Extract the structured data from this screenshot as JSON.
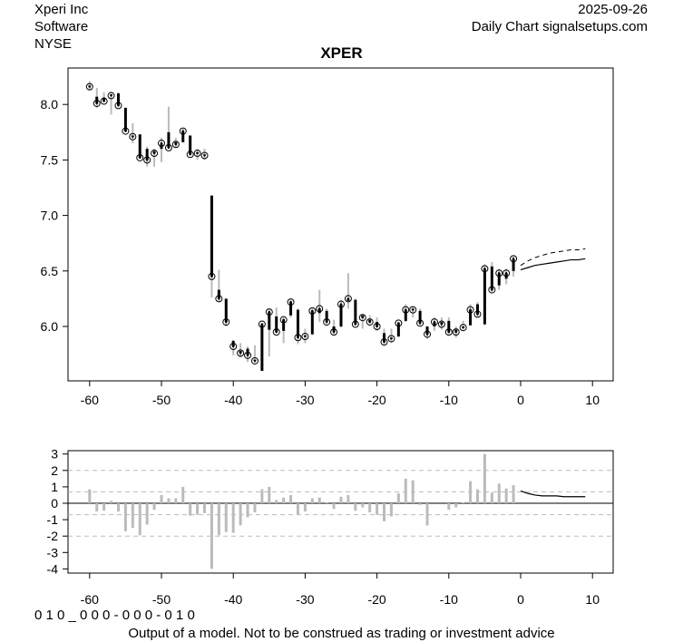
{
  "header": {
    "company": "Xperi Inc",
    "sector": "Software",
    "exchange": "NYSE",
    "date": "2025-09-26",
    "source": "Daily Chart signalsetups.com"
  },
  "footer": {
    "code": "0 1 0 _ 0 0 0 - 0 0 0 - 0 1 0",
    "disclaimer": "Output of a model. Not to be construed as trading or investment advice"
  },
  "chart_data": [
    {
      "type": "ohlc",
      "title": "XPER",
      "xlim": [
        -63,
        13
      ],
      "ylim": [
        5.55,
        8.35
      ],
      "xticks": [
        -60,
        -50,
        -40,
        -30,
        -20,
        -10,
        0,
        10
      ],
      "yticks": [
        6.0,
        6.5,
        7.0,
        7.5,
        8.0
      ],
      "ytick_labels": [
        "6.0",
        "6.5",
        "7.0",
        "7.5",
        "8.0"
      ],
      "x": [
        -60,
        -59,
        -58,
        -57,
        -56,
        -55,
        -54,
        -53,
        -52,
        -51,
        -50,
        -49,
        -48,
        -47,
        -46,
        -45,
        -44,
        -43,
        -42,
        -41,
        -40,
        -39,
        -38,
        -37,
        -36,
        -35,
        -34,
        -33,
        -32,
        -31,
        -30,
        -29,
        -28,
        -27,
        -26,
        -25,
        -24,
        -23,
        -22,
        -21,
        -20,
        -19,
        -18,
        -17,
        -16,
        -15,
        -14,
        -13,
        -12,
        -11,
        -10,
        -9,
        -8,
        -7,
        -6,
        -5,
        -4,
        -3,
        -2,
        -1
      ],
      "open": [
        8.17,
        8.07,
        8.06,
        8.09,
        8.1,
        7.97,
        7.72,
        7.73,
        7.6,
        7.58,
        7.6,
        7.75,
        7.66,
        7.66,
        7.72,
        7.57,
        7.55,
        7.18,
        6.33,
        6.25,
        5.87,
        5.78,
        5.8,
        5.7,
        5.6,
        5.97,
        6.09,
        5.96,
        6.1,
        6.15,
        5.92,
        5.93,
        6.12,
        6.14,
        6.0,
        6.0,
        6.23,
        6.24,
        6.1,
        6.06,
        6.04,
        5.94,
        5.9,
        5.91,
        6.05,
        6.16,
        6.14,
        6.0,
        6.0,
        6.04,
        6.05,
        5.97,
        6.0,
        6.01,
        6.2,
        6.02,
        6.54,
        6.37,
        6.43,
        6.5
      ],
      "high": [
        8.21,
        8.15,
        8.11,
        8.11,
        8.11,
        7.97,
        7.83,
        7.73,
        7.62,
        7.6,
        7.7,
        7.98,
        7.7,
        7.78,
        7.72,
        7.6,
        7.6,
        7.18,
        6.51,
        6.25,
        5.88,
        5.85,
        5.82,
        5.83,
        6.03,
        6.16,
        6.17,
        6.08,
        6.24,
        6.16,
        5.98,
        6.16,
        6.33,
        6.16,
        6.06,
        6.24,
        6.48,
        6.25,
        6.1,
        6.1,
        6.08,
        5.98,
        5.98,
        6.04,
        6.2,
        6.18,
        6.16,
        6.0,
        6.08,
        6.08,
        6.08,
        6.0,
        6.05,
        6.2,
        6.22,
        6.56,
        6.58,
        6.52,
        6.52,
        6.63
      ],
      "low": [
        8.13,
        7.97,
        8.02,
        7.91,
        7.98,
        7.76,
        7.65,
        7.52,
        7.44,
        7.44,
        7.48,
        7.6,
        7.61,
        7.66,
        7.55,
        7.5,
        7.5,
        6.26,
        6.22,
        6.0,
        5.74,
        5.72,
        5.68,
        5.67,
        5.6,
        5.73,
        5.94,
        5.85,
        6.08,
        5.84,
        5.85,
        5.92,
        6.04,
        6.02,
        5.93,
        5.99,
        6.16,
        6.01,
        5.98,
        6.02,
        5.96,
        5.84,
        5.85,
        5.9,
        6.04,
        6.08,
        6.01,
        5.89,
        5.96,
        5.97,
        5.93,
        5.9,
        5.97,
        6.01,
        6.08,
        6.01,
        6.31,
        6.33,
        6.38,
        6.45
      ],
      "close": [
        8.16,
        8.01,
        8.03,
        8.08,
        7.99,
        7.76,
        7.71,
        7.52,
        7.5,
        7.56,
        7.65,
        7.61,
        7.64,
        7.76,
        7.55,
        7.56,
        7.54,
        6.45,
        6.25,
        6.04,
        5.82,
        5.76,
        5.74,
        5.69,
        6.02,
        6.13,
        5.95,
        6.06,
        6.22,
        5.9,
        5.91,
        6.14,
        6.16,
        6.04,
        5.95,
        6.2,
        6.25,
        6.02,
        6.08,
        6.04,
        6.0,
        5.86,
        5.89,
        6.03,
        6.15,
        6.15,
        6.03,
        5.93,
        6.04,
        6.02,
        5.95,
        5.95,
        5.99,
        6.15,
        6.11,
        6.52,
        6.33,
        6.48,
        6.48,
        6.61
      ],
      "forecast": {
        "x": [
          0,
          1,
          2,
          3,
          4,
          5,
          6,
          7,
          8,
          9
        ],
        "solid": [
          6.51,
          6.53,
          6.55,
          6.56,
          6.57,
          6.58,
          6.59,
          6.6,
          6.6,
          6.61
        ],
        "dashed": [
          6.55,
          6.59,
          6.62,
          6.64,
          6.66,
          6.67,
          6.68,
          6.69,
          6.69,
          6.7
        ]
      }
    },
    {
      "type": "bar",
      "xlim": [
        -63,
        13
      ],
      "ylim": [
        -4.2,
        3.2
      ],
      "xticks": [
        -60,
        -50,
        -40,
        -30,
        -20,
        -10,
        0,
        10
      ],
      "yticks": [
        -4,
        -3,
        -2,
        -1,
        0,
        1,
        2,
        3
      ],
      "hlines_dashed": [
        -2,
        -0.7,
        0.7,
        2
      ],
      "x": [
        -60,
        -59,
        -58,
        -57,
        -56,
        -55,
        -54,
        -53,
        -52,
        -51,
        -50,
        -49,
        -48,
        -47,
        -46,
        -45,
        -44,
        -43,
        -42,
        -41,
        -40,
        -39,
        -38,
        -37,
        -36,
        -35,
        -34,
        -33,
        -32,
        -31,
        -30,
        -29,
        -28,
        -27,
        -26,
        -25,
        -24,
        -23,
        -22,
        -21,
        -20,
        -19,
        -18,
        -17,
        -16,
        -15,
        -14,
        -13,
        -12,
        -11,
        -10,
        -9,
        -8,
        -7,
        -6,
        -5,
        -4,
        -3,
        -2,
        -1
      ],
      "values": [
        0.85,
        -0.5,
        -0.45,
        0.15,
        -0.5,
        -1.7,
        -1.5,
        -1.95,
        -1.3,
        -0.4,
        0.5,
        0.3,
        0.3,
        1.0,
        -0.75,
        -0.7,
        -0.6,
        -4.0,
        -1.95,
        -1.75,
        -1.8,
        -1.35,
        -0.85,
        -0.55,
        0.85,
        1.0,
        0.2,
        0.35,
        0.5,
        -0.7,
        -0.5,
        0.3,
        0.35,
        0.05,
        -0.35,
        0.4,
        0.5,
        -0.45,
        -0.25,
        -0.55,
        -0.7,
        -1.1,
        -0.8,
        0.6,
        1.5,
        1.4,
        -0.1,
        -1.35,
        0,
        0,
        -0.4,
        -0.25,
        0.05,
        1.35,
        0.85,
        3.0,
        0.65,
        1.2,
        0.9,
        1.1
      ],
      "forecast": {
        "x": [
          0,
          1,
          2,
          3,
          4,
          5,
          6,
          7,
          8,
          9
        ],
        "values": [
          0.75,
          0.6,
          0.5,
          0.45,
          0.45,
          0.45,
          0.4,
          0.4,
          0.4,
          0.4
        ]
      }
    }
  ]
}
